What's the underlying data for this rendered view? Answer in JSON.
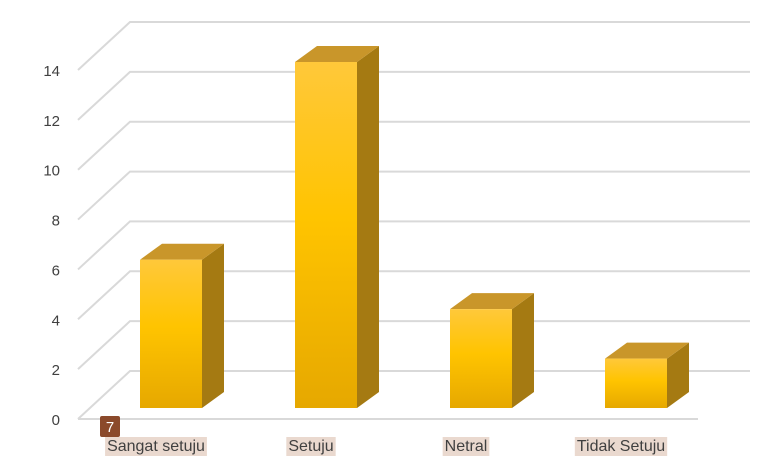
{
  "chart_data": {
    "type": "bar",
    "style": "3d-column",
    "categories": [
      "Sangat setuju",
      "Setuju",
      "Netral",
      "Tidak Setuju"
    ],
    "values": [
      6,
      14,
      4,
      2
    ],
    "title": "",
    "xlabel": "",
    "ylabel": "",
    "ylim": [
      0,
      14
    ],
    "yticks": [
      0,
      2,
      4,
      6,
      8,
      10,
      12,
      14
    ],
    "grid": true,
    "legend": false,
    "colors": {
      "bar_front_top": "#ffc83a",
      "bar_front_bottom": "#e6a800",
      "bar_top_face": "#c9962a",
      "bar_side_face": "#a57a12",
      "gridline": "#d9d9d9",
      "category_highlight": "#ead9cf",
      "badge": "#8b4a2b"
    }
  },
  "annotation": {
    "badge_text": "7"
  }
}
